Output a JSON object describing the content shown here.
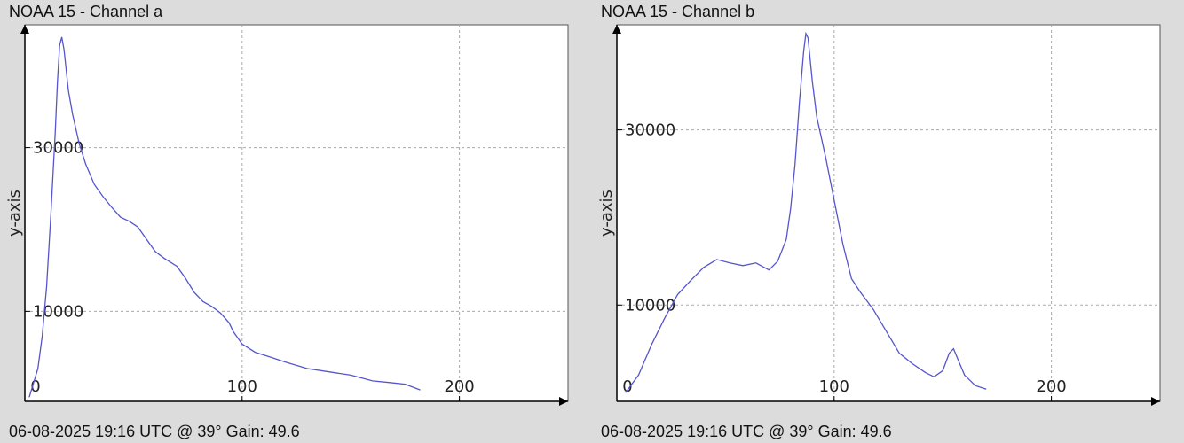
{
  "chart_data": [
    {
      "type": "line",
      "title": "NOAA 15 - Channel a",
      "ylabel": "y-axis",
      "footer": "06-08-2025 19:16 UTC @ 39° Gain: 49.6",
      "xlim": [
        0,
        250
      ],
      "ylim": [
        -1000,
        45000
      ],
      "xticks": [
        0,
        100,
        200
      ],
      "yticks": [
        10000,
        30000
      ],
      "x_tick_labels": [
        "0",
        "100",
        "200"
      ],
      "y_tick_labels": [
        "10000",
        "30000"
      ],
      "grid": true,
      "series": [
        {
          "color": "#5555cc",
          "points": [
            [
              2,
              -500
            ],
            [
              6,
              3000
            ],
            [
              8,
              7000
            ],
            [
              10,
              13000
            ],
            [
              12,
              22000
            ],
            [
              14,
              32000
            ],
            [
              15,
              38000
            ],
            [
              16,
              42500
            ],
            [
              17,
              43500
            ],
            [
              18,
              42000
            ],
            [
              20,
              37000
            ],
            [
              22,
              34000
            ],
            [
              25,
              30500
            ],
            [
              28,
              28000
            ],
            [
              32,
              25500
            ],
            [
              36,
              24000
            ],
            [
              40,
              22700
            ],
            [
              44,
              21500
            ],
            [
              48,
              21000
            ],
            [
              52,
              20300
            ],
            [
              56,
              18800
            ],
            [
              60,
              17300
            ],
            [
              64,
              16500
            ],
            [
              70,
              15500
            ],
            [
              74,
              14000
            ],
            [
              78,
              12300
            ],
            [
              82,
              11200
            ],
            [
              86,
              10600
            ],
            [
              90,
              9800
            ],
            [
              94,
              8600
            ],
            [
              96,
              7500
            ],
            [
              100,
              6000
            ],
            [
              106,
              5000
            ],
            [
              112,
              4500
            ],
            [
              120,
              3800
            ],
            [
              130,
              3000
            ],
            [
              140,
              2600
            ],
            [
              150,
              2200
            ],
            [
              160,
              1500
            ],
            [
              168,
              1300
            ],
            [
              175,
              1100
            ],
            [
              182,
              400
            ]
          ]
        }
      ]
    },
    {
      "type": "line",
      "title": "NOAA 15 - Channel b",
      "ylabel": "y-axis",
      "footer": "06-08-2025 19:16 UTC @ 39° Gain: 49.6",
      "xlim": [
        0,
        250
      ],
      "ylim": [
        -1000,
        42000
      ],
      "xticks": [
        0,
        100,
        200
      ],
      "yticks": [
        10000,
        30000
      ],
      "x_tick_labels": [
        "0",
        "100",
        "200"
      ],
      "y_tick_labels": [
        "10000",
        "30000"
      ],
      "grid": true,
      "series": [
        {
          "color": "#5555cc",
          "points": [
            [
              4,
              0
            ],
            [
              10,
              2000
            ],
            [
              16,
              5500
            ],
            [
              22,
              8500
            ],
            [
              28,
              11200
            ],
            [
              34,
              12800
            ],
            [
              40,
              14300
            ],
            [
              46,
              15200
            ],
            [
              52,
              14800
            ],
            [
              58,
              14500
            ],
            [
              64,
              14800
            ],
            [
              70,
              14000
            ],
            [
              74,
              15000
            ],
            [
              78,
              17500
            ],
            [
              80,
              21000
            ],
            [
              82,
              26000
            ],
            [
              84,
              33000
            ],
            [
              86,
              39000
            ],
            [
              87,
              41000
            ],
            [
              88,
              40500
            ],
            [
              90,
              35500
            ],
            [
              92,
              31500
            ],
            [
              96,
              27000
            ],
            [
              100,
              22000
            ],
            [
              104,
              17000
            ],
            [
              108,
              13000
            ],
            [
              112,
              11500
            ],
            [
              118,
              9500
            ],
            [
              124,
              7000
            ],
            [
              130,
              4500
            ],
            [
              136,
              3300
            ],
            [
              142,
              2300
            ],
            [
              146,
              1800
            ],
            [
              150,
              2500
            ],
            [
              153,
              4500
            ],
            [
              155,
              5000
            ],
            [
              157,
              3800
            ],
            [
              160,
              2000
            ],
            [
              165,
              800
            ],
            [
              170,
              400
            ]
          ]
        }
      ]
    }
  ]
}
